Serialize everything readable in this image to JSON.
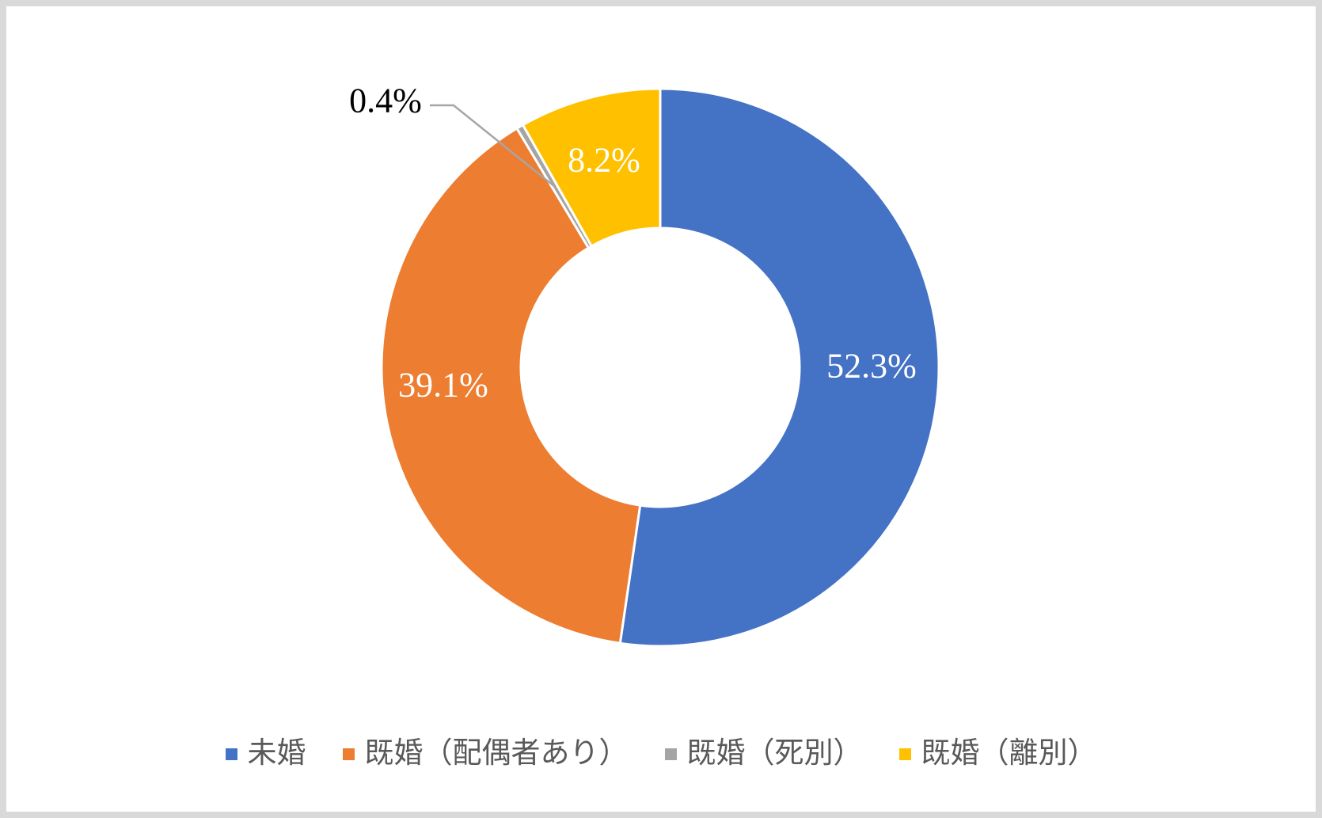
{
  "chart_data": {
    "type": "pie",
    "subtype": "donut",
    "title": "",
    "categories": [
      "未婚",
      "既婚（配偶者あり）",
      "既婚（死別）",
      "既婚（離別）"
    ],
    "values": [
      52.3,
      39.1,
      0.4,
      8.2
    ],
    "data_labels": [
      "52.3%",
      "39.1%",
      "0.4%",
      "8.2%"
    ],
    "colors": [
      "#4472C4",
      "#ED7D31",
      "#A5A5A5",
      "#FFC000"
    ],
    "hole_ratio": 0.5,
    "start_angle_deg": 0,
    "direction": "clockwise",
    "legend_position": "bottom",
    "grid": false,
    "inside_label_color": "#FFFFFF",
    "outside_label_color": "#000000",
    "leader_line_color": "#A6A6A6",
    "slice_border_color": "#FFFFFF",
    "legend_text_color": "#595959",
    "background_color": "#FFFFFF",
    "frame_color": "#D9D9D9"
  }
}
